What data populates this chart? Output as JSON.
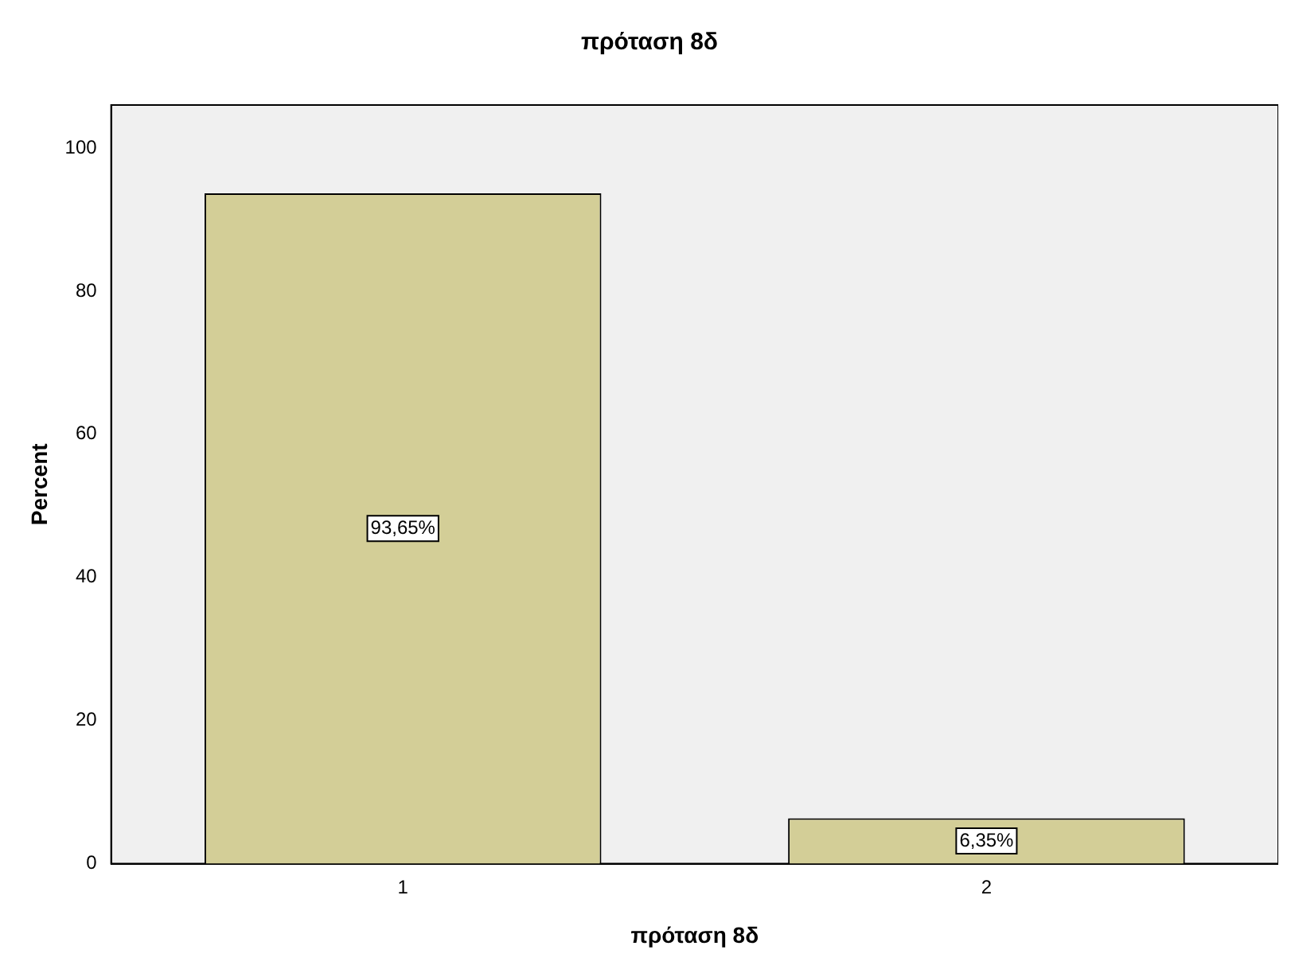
{
  "chart_data": {
    "type": "bar",
    "title": "πρόταση 8δ",
    "xlabel": "πρόταση 8δ",
    "ylabel": "Percent",
    "categories": [
      "1",
      "2"
    ],
    "series": [
      {
        "color": "#d3ce97",
        "values": [
          93.65,
          6.35
        ],
        "value_labels": [
          "93,65%",
          "6,35%"
        ]
      }
    ],
    "ylim": [
      0,
      106
    ],
    "yticks": [
      0,
      20,
      40,
      60,
      80,
      100
    ],
    "grid": false,
    "legend": false
  }
}
